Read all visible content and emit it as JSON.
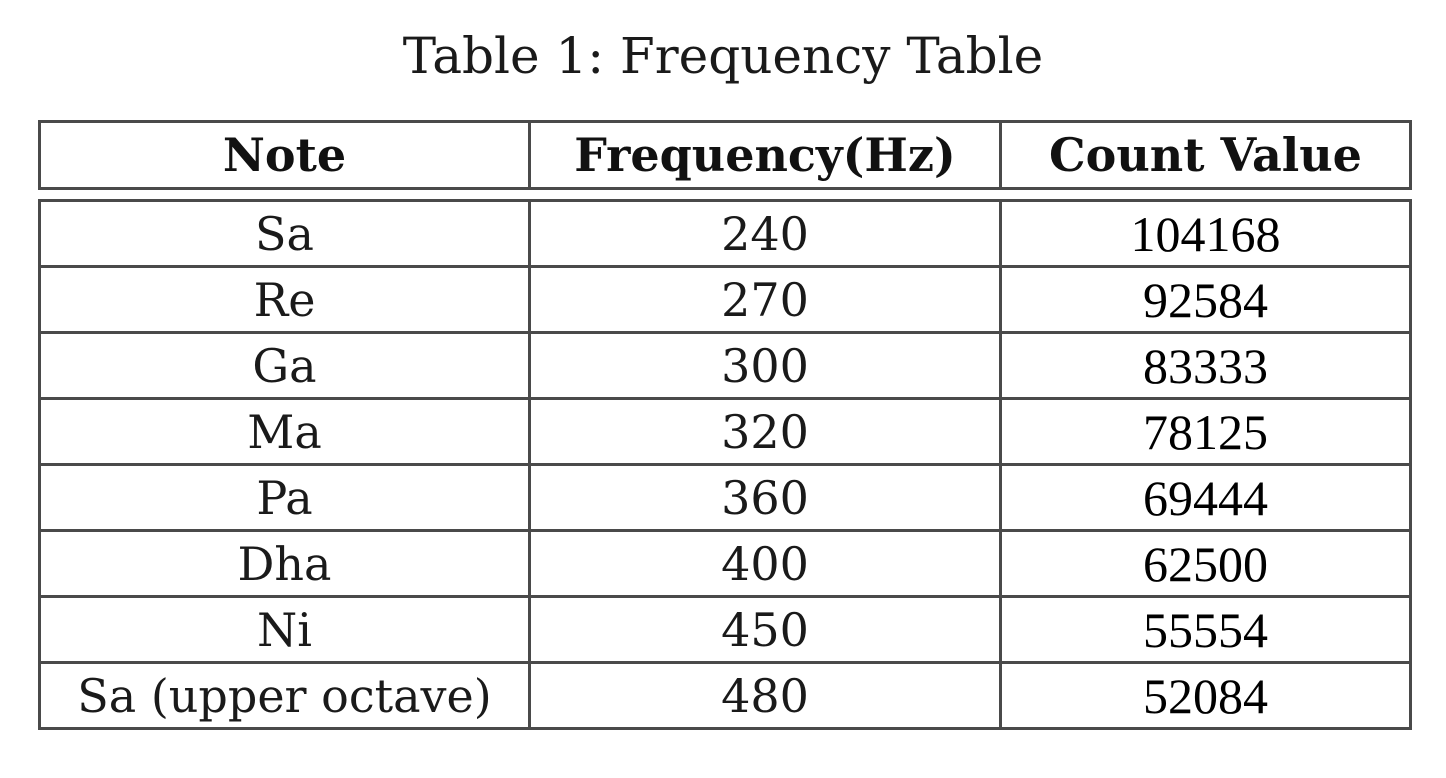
{
  "caption": "Table 1: Frequency Table",
  "columns": [
    "Note",
    "Frequency(Hz)",
    "Count Value"
  ],
  "rows": [
    {
      "note": "Sa",
      "frequency": "240",
      "count": "104168"
    },
    {
      "note": "Re",
      "frequency": "270",
      "count": "92584"
    },
    {
      "note": "Ga",
      "frequency": "300",
      "count": "83333"
    },
    {
      "note": "Ma",
      "frequency": "320",
      "count": "78125"
    },
    {
      "note": "Pa",
      "frequency": "360",
      "count": "69444"
    },
    {
      "note": "Dha",
      "frequency": "400",
      "count": "62500"
    },
    {
      "note": "Ni",
      "frequency": "450",
      "count": "55554"
    },
    {
      "note": "Sa (upper octave)",
      "frequency": "480",
      "count": "52084"
    }
  ],
  "colors": {
    "border": "#4a4a4a",
    "text": "#111111",
    "background": "#ffffff"
  }
}
